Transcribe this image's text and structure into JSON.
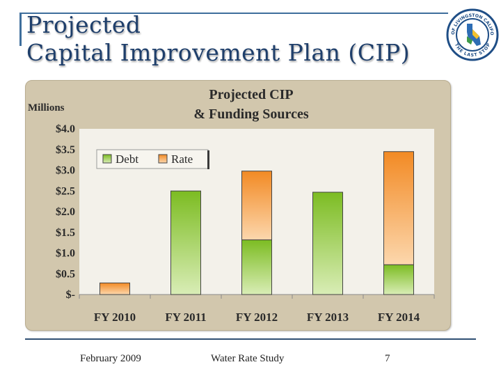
{
  "slide": {
    "title_line1": "Projected",
    "title_line2": "Capital Improvement Plan (CIP)"
  },
  "seal": {
    "top_text": "CITY OF LIVINGSTON CALIFORNIA",
    "bottom_text": "THE LAST STOP"
  },
  "footer": {
    "date": "February 2009",
    "study": "Water Rate Study",
    "page": "7"
  },
  "chart_data": {
    "type": "bar",
    "stacked": true,
    "title": "Projected CIP",
    "subtitle": "& Funding Sources",
    "ylabel": "Millions",
    "categories": [
      "FY 2010",
      "FY 2011",
      "FY 2012",
      "FY 2013",
      "FY 2014"
    ],
    "series": [
      {
        "name": "Debt",
        "values": [
          0,
          2.5,
          1.32,
          2.47,
          0.72
        ],
        "color": "#8cc63e"
      },
      {
        "name": "Rate",
        "values": [
          0.28,
          0,
          1.66,
          0,
          2.73
        ],
        "color": "#f5a04a"
      }
    ],
    "ylim": [
      0,
      4.0
    ],
    "yticks": [
      0,
      0.5,
      1.0,
      1.5,
      2.0,
      2.5,
      3.0,
      3.5,
      4.0
    ],
    "ytick_labels": [
      "$-",
      "$0.5",
      "$1.0",
      "$1.5",
      "$2.0",
      "$2.5",
      "$3.0",
      "$3.5",
      "$4.0"
    ],
    "grid": false,
    "legend_position": "top-left"
  }
}
